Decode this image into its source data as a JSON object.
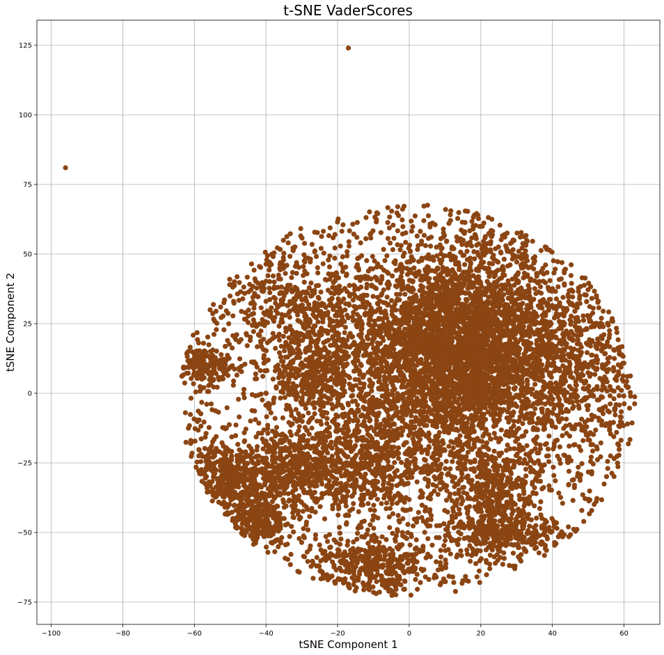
{
  "chart_data": {
    "type": "scatter",
    "title": "t-SNE VaderScores",
    "xlabel": "tSNE Component 1",
    "ylabel": "tSNE Component 2",
    "xlim": [
      -104,
      70
    ],
    "ylim": [
      -83,
      134
    ],
    "xticks": [
      -100,
      -80,
      -60,
      -40,
      -20,
      0,
      20,
      40,
      60
    ],
    "yticks": [
      -75,
      -50,
      -25,
      0,
      25,
      50,
      75,
      100,
      125
    ],
    "xtick_labels": [
      "−100",
      "−80",
      "−60",
      "−40",
      "−20",
      "0",
      "20",
      "40",
      "60"
    ],
    "ytick_labels": [
      "−75",
      "−50",
      "−25",
      "0",
      "25",
      "50",
      "75",
      "100",
      "125"
    ],
    "grid": true,
    "marker_color": "#8B4513",
    "outliers": [
      {
        "x": -96,
        "y": 81
      },
      {
        "x": -17,
        "y": 124
      }
    ],
    "point_cloud": {
      "approx_count": 9000,
      "x_range": [
        -64,
        63
      ],
      "y_range": [
        -73,
        68
      ],
      "dense_core": {
        "x": 12,
        "y": 15
      },
      "clusters": [
        {
          "x": 15,
          "y": 18,
          "spread_x": 15,
          "spread_y": 18,
          "weight": 0.35
        },
        {
          "x": 0,
          "y": 0,
          "spread_x": 28,
          "spread_y": 28,
          "weight": 0.25
        },
        {
          "x": -50,
          "y": -30,
          "spread_x": 6,
          "spread_y": 6,
          "weight": 0.04
        },
        {
          "x": -43,
          "y": -47,
          "spread_x": 5,
          "spread_y": 4,
          "weight": 0.03
        },
        {
          "x": -57,
          "y": 10,
          "spread_x": 4,
          "spread_y": 3,
          "weight": 0.02
        },
        {
          "x": -27,
          "y": 5,
          "spread_x": 6,
          "spread_y": 6,
          "weight": 0.03
        },
        {
          "x": -15,
          "y": -27,
          "spread_x": 10,
          "spread_y": 8,
          "weight": 0.05
        },
        {
          "x": -10,
          "y": -62,
          "spread_x": 8,
          "spread_y": 6,
          "weight": 0.04
        },
        {
          "x": 25,
          "y": -35,
          "spread_x": 6,
          "spread_y": 6,
          "weight": 0.03
        },
        {
          "x": 26,
          "y": -50,
          "spread_x": 8,
          "spread_y": 4,
          "weight": 0.03
        },
        {
          "x": -35,
          "y": -28,
          "spread_x": 6,
          "spread_y": 8,
          "weight": 0.04
        },
        {
          "x": -30,
          "y": 30,
          "spread_x": 10,
          "spread_y": 10,
          "weight": 0.04
        },
        {
          "x": 45,
          "y": 10,
          "spread_x": 10,
          "spread_y": 14,
          "weight": 0.05
        }
      ]
    }
  }
}
